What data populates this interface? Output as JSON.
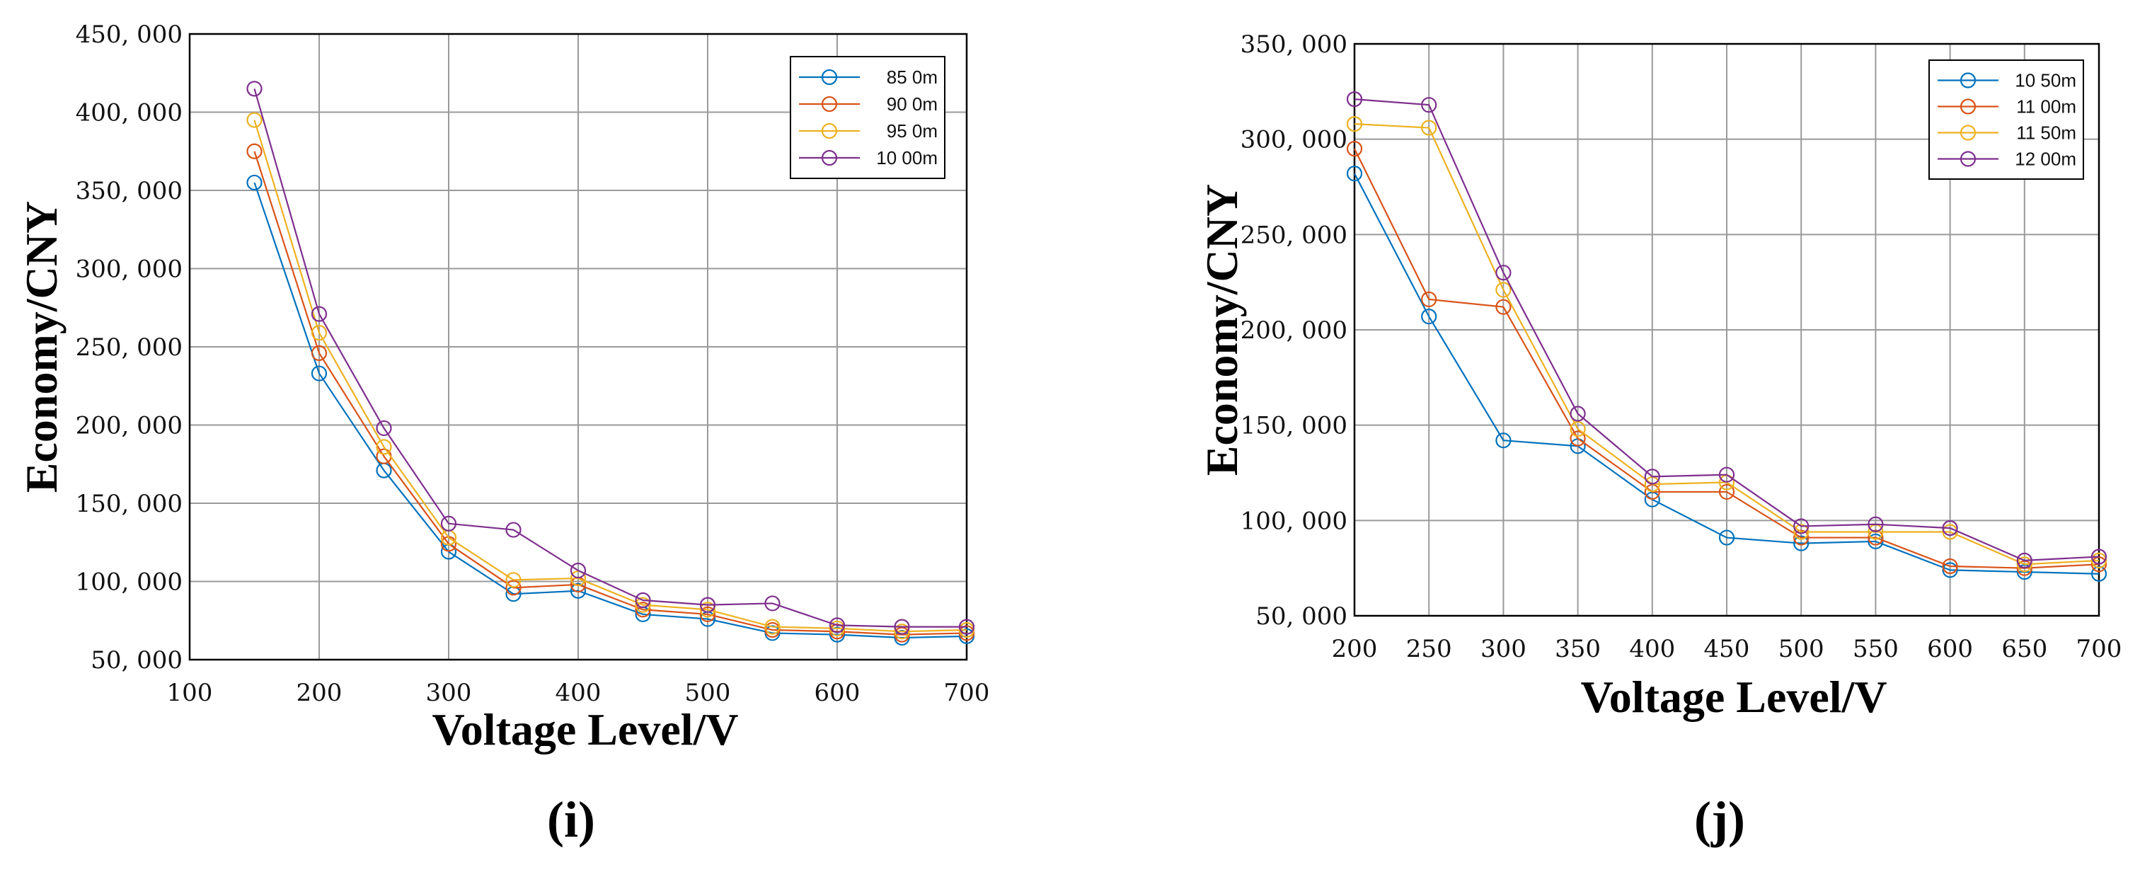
{
  "chart_data": [
    {
      "type": "line",
      "panel_label": "(i)",
      "xlabel": "Voltage Level/V",
      "ylabel": "Economy/CNY",
      "xlim": [
        100,
        700
      ],
      "ylim": [
        50000,
        450000
      ],
      "x_ticks": [
        100,
        200,
        300,
        400,
        500,
        600,
        700
      ],
      "y_ticks": [
        50000,
        100000,
        150000,
        200000,
        250000,
        300000,
        350000,
        400000,
        450000
      ],
      "x_tick_labels": [
        "100",
        "200",
        "300",
        "400",
        "500",
        "600",
        "700"
      ],
      "y_tick_labels": [
        "50, 000",
        "100, 000",
        "150, 000",
        "200, 000",
        "250, 000",
        "300, 000",
        "350, 000",
        "400, 000",
        "450, 000"
      ],
      "grid": true,
      "legend_position": "top-right",
      "x": [
        150,
        200,
        250,
        300,
        350,
        400,
        450,
        500,
        550,
        600,
        650,
        700
      ],
      "series": [
        {
          "name": "85 0m",
          "color": "#0072BD",
          "values": [
            355000,
            233000,
            171000,
            119000,
            92000,
            94000,
            79000,
            76000,
            67000,
            66000,
            64000,
            65000
          ]
        },
        {
          "name": "90 0m",
          "color": "#D95319",
          "values": [
            375000,
            246000,
            180000,
            124000,
            96000,
            98000,
            82000,
            79000,
            69000,
            68000,
            66000,
            67000
          ]
        },
        {
          "name": "95 0m",
          "color": "#EDB120",
          "values": [
            395000,
            259000,
            186000,
            128000,
            101000,
            102000,
            85000,
            82000,
            71000,
            70000,
            68000,
            69000
          ]
        },
        {
          "name": "10 00m",
          "color": "#7E2F8E",
          "values": [
            415000,
            271000,
            198000,
            137000,
            133000,
            107000,
            88000,
            85000,
            86000,
            72000,
            71000,
            71000
          ]
        }
      ]
    },
    {
      "type": "line",
      "panel_label": "(j)",
      "xlabel": "Voltage Level/V",
      "ylabel": "Economy/CNY",
      "xlim": [
        200,
        700
      ],
      "ylim": [
        50000,
        350000
      ],
      "x_ticks": [
        200,
        250,
        300,
        350,
        400,
        450,
        500,
        550,
        600,
        650,
        700
      ],
      "y_ticks": [
        50000,
        100000,
        150000,
        200000,
        250000,
        300000,
        350000
      ],
      "x_tick_labels": [
        "200",
        "250",
        "300",
        "350",
        "400",
        "450",
        "500",
        "550",
        "600",
        "650",
        "700"
      ],
      "y_tick_labels": [
        "50, 000",
        "100, 000",
        "150, 000",
        "200, 000",
        "250, 000",
        "300, 000",
        "350, 000"
      ],
      "grid": true,
      "legend_position": "top-right",
      "x": [
        200,
        250,
        300,
        350,
        400,
        450,
        500,
        550,
        600,
        650,
        700
      ],
      "series": [
        {
          "name": "10 50m",
          "color": "#0072BD",
          "values": [
            282000,
            207000,
            142000,
            139000,
            111000,
            91000,
            88000,
            89000,
            74000,
            73000,
            72000
          ]
        },
        {
          "name": "11 00m",
          "color": "#D95319",
          "values": [
            295000,
            216000,
            212000,
            143000,
            115000,
            115000,
            91000,
            91000,
            76000,
            75000,
            77000
          ]
        },
        {
          "name": "11 50m",
          "color": "#EDB120",
          "values": [
            308000,
            306000,
            221000,
            148000,
            119000,
            120000,
            94000,
            94000,
            94000,
            77000,
            79000
          ]
        },
        {
          "name": "12 00m",
          "color": "#7E2F8E",
          "values": [
            321000,
            318000,
            230000,
            156000,
            123000,
            124000,
            97000,
            98000,
            96000,
            79000,
            81000
          ]
        }
      ]
    }
  ]
}
